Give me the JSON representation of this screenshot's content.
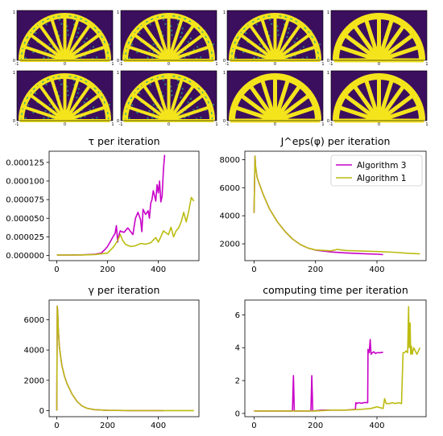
{
  "colors": {
    "algo3": "#c800c8",
    "algo1": "#bcbc12",
    "density_bg": "#3b0f5e",
    "density_fg": "#f4e41c",
    "density_mid": "#22a884"
  },
  "panels": {
    "corner_tick_x": [
      "-1",
      "0",
      "1"
    ],
    "corner_tick_y": [
      "0",
      "1"
    ],
    "rows": 2,
    "cols": 4
  },
  "chart_data": [
    {
      "type": "line",
      "title": "τ per iteration",
      "xlim": [
        -30,
        560
      ],
      "ylim": [
        -7e-06,
        0.00014
      ],
      "xticks": [
        0,
        200,
        400
      ],
      "xtick_labels": [
        "0",
        "200",
        "400"
      ],
      "yticks": [
        0,
        2.5e-05,
        5e-05,
        7.5e-05,
        0.0001,
        0.000125
      ],
      "ytick_labels": [
        "0.000000",
        "0.000025",
        "0.000050",
        "0.000075",
        "0.000100",
        "0.000125"
      ],
      "series": [
        {
          "color_key": "algo3",
          "x": [
            0,
            50,
            100,
            150,
            175,
            190,
            200,
            210,
            220,
            230,
            235,
            240,
            245,
            250,
            255,
            265,
            280,
            300,
            310,
            320,
            330,
            335,
            340,
            350,
            360,
            365,
            370,
            375,
            380,
            390,
            395,
            400,
            405,
            410,
            415,
            420,
            425
          ],
          "y": [
            5e-07,
            5e-07,
            8e-07,
            1.5e-06,
            3e-06,
            8e-06,
            1.2e-05,
            1.8e-05,
            2.4e-05,
            3e-05,
            4e-05,
            1.8e-05,
            2.8e-05,
            3.3e-05,
            3.2e-05,
            3.1e-05,
            3.7e-05,
            2.8e-05,
            5e-05,
            5.8e-05,
            4.8e-05,
            3.2e-05,
            6.2e-05,
            5.5e-05,
            6e-05,
            5e-05,
            7e-05,
            7.5e-05,
            8.7e-05,
            7.3e-05,
            9.5e-05,
            8.4e-05,
            0.0001,
            7.2e-05,
            8e-05,
            0.000115,
            0.000135
          ]
        },
        {
          "color_key": "algo1",
          "x": [
            0,
            50,
            100,
            150,
            200,
            225,
            240,
            250,
            260,
            270,
            290,
            310,
            330,
            350,
            370,
            390,
            400,
            410,
            420,
            440,
            450,
            460,
            470,
            480,
            490,
            500,
            510,
            520,
            530,
            540
          ],
          "y": [
            5e-07,
            5e-07,
            7e-07,
            1.2e-06,
            3e-06,
            1.2e-05,
            2e-05,
            2.8e-05,
            2e-05,
            1.5e-05,
            1.2e-05,
            1.3e-05,
            1.6e-05,
            1.5e-05,
            1.7e-05,
            2.4e-05,
            1.8e-05,
            2.5e-05,
            3.3e-05,
            2.8e-05,
            3.8e-05,
            2.5e-05,
            3.3e-05,
            3.7e-05,
            4.5e-05,
            5.8e-05,
            4.5e-05,
            6e-05,
            7.8e-05,
            7.3e-05
          ]
        }
      ]
    },
    {
      "type": "line",
      "title": "J^eps(φ) per iteration",
      "xlim": [
        -30,
        560
      ],
      "ylim": [
        800,
        8600
      ],
      "xticks": [
        0,
        200,
        400
      ],
      "xtick_labels": [
        "0",
        "200",
        "400"
      ],
      "yticks": [
        2000,
        4000,
        6000,
        8000
      ],
      "ytick_labels": [
        "2000",
        "4000",
        "6000",
        "8000"
      ],
      "legend": {
        "position": "upper right",
        "entries": [
          "Algorithm 3",
          "Algorithm 1"
        ]
      },
      "series": [
        {
          "name": "Algorithm 3",
          "color_key": "algo3",
          "x": [
            0,
            3,
            5,
            10,
            20,
            30,
            50,
            75,
            100,
            125,
            150,
            175,
            200,
            250,
            300,
            350,
            400,
            420
          ],
          "y": [
            4200,
            8250,
            7500,
            6700,
            6100,
            5500,
            4500,
            3600,
            2900,
            2350,
            1950,
            1700,
            1550,
            1420,
            1350,
            1300,
            1260,
            1230
          ]
        },
        {
          "name": "Algorithm 1",
          "color_key": "algo1",
          "x": [
            0,
            3,
            5,
            10,
            20,
            30,
            50,
            75,
            100,
            125,
            150,
            175,
            200,
            250,
            270,
            300,
            350,
            400,
            450,
            500,
            540
          ],
          "y": [
            4200,
            8250,
            7500,
            6700,
            6100,
            5500,
            4500,
            3600,
            2900,
            2350,
            1950,
            1700,
            1560,
            1500,
            1600,
            1520,
            1480,
            1450,
            1400,
            1330,
            1280
          ]
        }
      ]
    },
    {
      "type": "line",
      "title": "γ per iteration",
      "xlim": [
        -30,
        560
      ],
      "ylim": [
        -400,
        7300
      ],
      "xticks": [
        0,
        200,
        400
      ],
      "xtick_labels": [
        "0",
        "200",
        "400"
      ],
      "yticks": [
        0,
        2000,
        4000,
        6000
      ],
      "ytick_labels": [
        "0",
        "2000",
        "4000",
        "6000"
      ],
      "series": [
        {
          "color_key": "algo3",
          "x": [
            0,
            2,
            4,
            6,
            10,
            15,
            20,
            30,
            40,
            60,
            80,
            100,
            120,
            150,
            200,
            300,
            420
          ],
          "y": [
            0,
            6900,
            6500,
            5500,
            4300,
            3600,
            3000,
            2300,
            1800,
            1100,
            600,
            300,
            150,
            60,
            20,
            5,
            2
          ]
        },
        {
          "color_key": "algo1",
          "x": [
            0,
            2,
            4,
            6,
            10,
            15,
            20,
            30,
            40,
            60,
            80,
            100,
            120,
            150,
            200,
            300,
            400,
            540
          ],
          "y": [
            0,
            6900,
            6500,
            5500,
            4300,
            3600,
            3000,
            2300,
            1800,
            1100,
            600,
            300,
            150,
            60,
            20,
            5,
            3,
            2
          ]
        }
      ]
    },
    {
      "type": "line",
      "title": "computing time per iteration",
      "xlim": [
        -30,
        560
      ],
      "ylim": [
        -0.2,
        6.9
      ],
      "xticks": [
        0,
        200,
        400
      ],
      "xtick_labels": [
        "0",
        "200",
        "400"
      ],
      "yticks": [
        0,
        2,
        4,
        6
      ],
      "ytick_labels": [
        "0",
        "2",
        "4",
        "6"
      ],
      "series": [
        {
          "color_key": "algo3",
          "x": [
            0,
            100,
            125,
            128,
            131,
            150,
            180,
            185,
            188,
            191,
            220,
            300,
            330,
            331,
            335,
            340,
            350,
            360,
            370,
            371,
            375,
            378,
            381,
            385,
            390,
            395,
            400,
            410,
            420
          ],
          "y": [
            0.15,
            0.15,
            0.15,
            2.3,
            0.15,
            0.15,
            0.15,
            0.15,
            2.3,
            0.15,
            0.2,
            0.2,
            0.25,
            0.65,
            0.6,
            0.65,
            0.62,
            0.66,
            0.65,
            3.9,
            3.7,
            4.5,
            3.6,
            3.7,
            3.75,
            3.65,
            3.7,
            3.7,
            3.72
          ]
        },
        {
          "color_key": "algo1",
          "x": [
            0,
            100,
            200,
            250,
            300,
            350,
            380,
            400,
            420,
            425,
            430,
            440,
            450,
            460,
            470,
            480,
            485,
            490,
            495,
            500,
            503,
            505,
            508,
            510,
            512,
            515,
            520,
            530,
            540
          ],
          "y": [
            0.15,
            0.15,
            0.15,
            0.2,
            0.2,
            0.25,
            0.3,
            0.4,
            0.3,
            0.9,
            0.6,
            0.6,
            0.65,
            0.6,
            0.65,
            0.6,
            3.7,
            3.7,
            3.8,
            3.7,
            6.5,
            4.0,
            5.5,
            3.6,
            4.1,
            3.6,
            4.0,
            3.6,
            4.0
          ]
        }
      ]
    }
  ]
}
